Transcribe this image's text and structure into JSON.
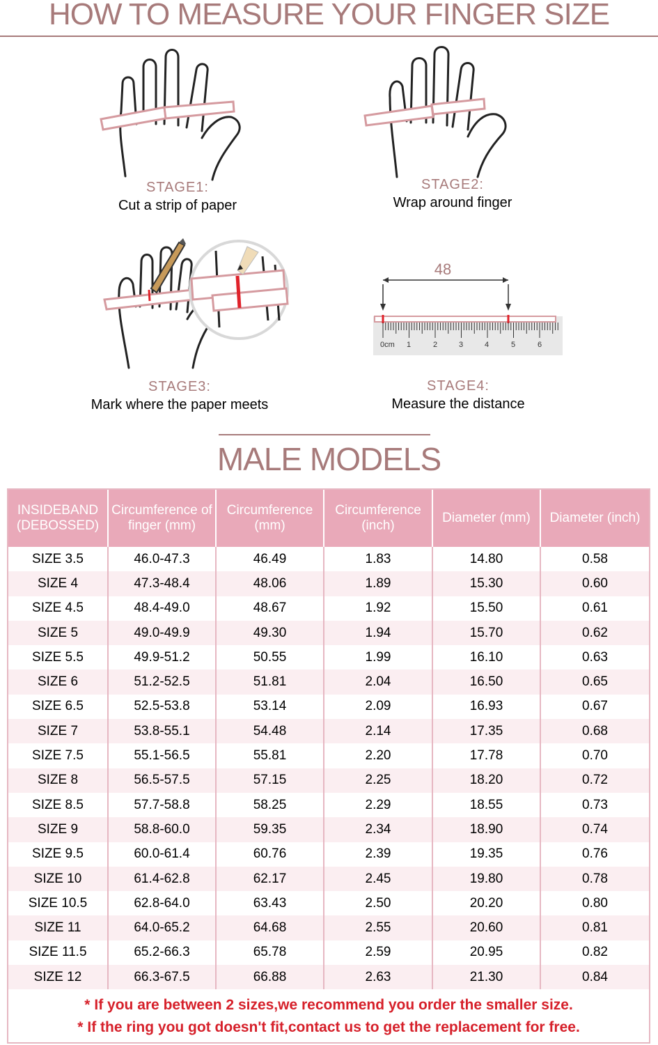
{
  "header": {
    "title": "HOW TO MEASURE YOUR FINGER SIZE"
  },
  "stages": [
    {
      "label": "STAGE1:",
      "desc": "Cut a strip of paper"
    },
    {
      "label": "STAGE2:",
      "desc": "Wrap around finger"
    },
    {
      "label": "STAGE3:",
      "desc": "Mark where the paper meets"
    },
    {
      "label": "STAGE4:",
      "desc": "Measure the distance"
    }
  ],
  "ruler": {
    "measure_label": "48",
    "unit_label": "0cm",
    "ticks": [
      "1",
      "2",
      "3",
      "4",
      "5",
      "6"
    ]
  },
  "section": {
    "title": "MALE MODELS"
  },
  "table": {
    "headers": [
      "INSIDEBAND (DEBOSSED)",
      "Circumference of finger (mm)",
      "Circumference (mm)",
      "Circumference (inch)",
      "Diameter (mm)",
      "Diameter (inch)"
    ],
    "rows": [
      [
        "SIZE 3.5",
        "46.0-47.3",
        "46.49",
        "1.83",
        "14.80",
        "0.58"
      ],
      [
        "SIZE 4",
        "47.3-48.4",
        "48.06",
        "1.89",
        "15.30",
        "0.60"
      ],
      [
        "SIZE 4.5",
        "48.4-49.0",
        "48.67",
        "1.92",
        "15.50",
        "0.61"
      ],
      [
        "SIZE 5",
        "49.0-49.9",
        "49.30",
        "1.94",
        "15.70",
        "0.62"
      ],
      [
        "SIZE 5.5",
        "49.9-51.2",
        "50.55",
        "1.99",
        "16.10",
        "0.63"
      ],
      [
        "SIZE 6",
        "51.2-52.5",
        "51.81",
        "2.04",
        "16.50",
        "0.65"
      ],
      [
        "SIZE 6.5",
        "52.5-53.8",
        "53.14",
        "2.09",
        "16.93",
        "0.67"
      ],
      [
        "SIZE 7",
        "53.8-55.1",
        "54.48",
        "2.14",
        "17.35",
        "0.68"
      ],
      [
        "SIZE 7.5",
        "55.1-56.5",
        "55.81",
        "2.20",
        "17.78",
        "0.70"
      ],
      [
        "SIZE 8",
        "56.5-57.5",
        "57.15",
        "2.25",
        "18.20",
        "0.72"
      ],
      [
        "SIZE 8.5",
        "57.7-58.8",
        "58.25",
        "2.29",
        "18.55",
        "0.73"
      ],
      [
        "SIZE 9",
        "58.8-60.0",
        "59.35",
        "2.34",
        "18.90",
        "0.74"
      ],
      [
        "SIZE 9.5",
        "60.0-61.4",
        "60.76",
        "2.39",
        "19.35",
        "0.76"
      ],
      [
        "SIZE 10",
        "61.4-62.8",
        "62.17",
        "2.45",
        "19.80",
        "0.78"
      ],
      [
        "SIZE 10.5",
        "62.8-64.0",
        "63.43",
        "2.50",
        "20.20",
        "0.80"
      ],
      [
        "SIZE 11",
        "64.0-65.2",
        "64.68",
        "2.55",
        "20.60",
        "0.81"
      ],
      [
        "SIZE 11.5",
        "65.2-66.3",
        "65.78",
        "2.59",
        "20.95",
        "0.82"
      ],
      [
        "SIZE 12",
        "66.3-67.5",
        "66.88",
        "2.63",
        "21.30",
        "0.84"
      ]
    ]
  },
  "notes": [
    "If you are between 2 sizes,we recommend you order the smaller size.",
    "If the ring you got doesn't fit,contact us to get the replacement for free."
  ],
  "colors": {
    "accent": "#a77a7a",
    "header_bg": "#e9a9b9",
    "row_alt": "#fbeef1",
    "note_red": "#d6202a"
  }
}
